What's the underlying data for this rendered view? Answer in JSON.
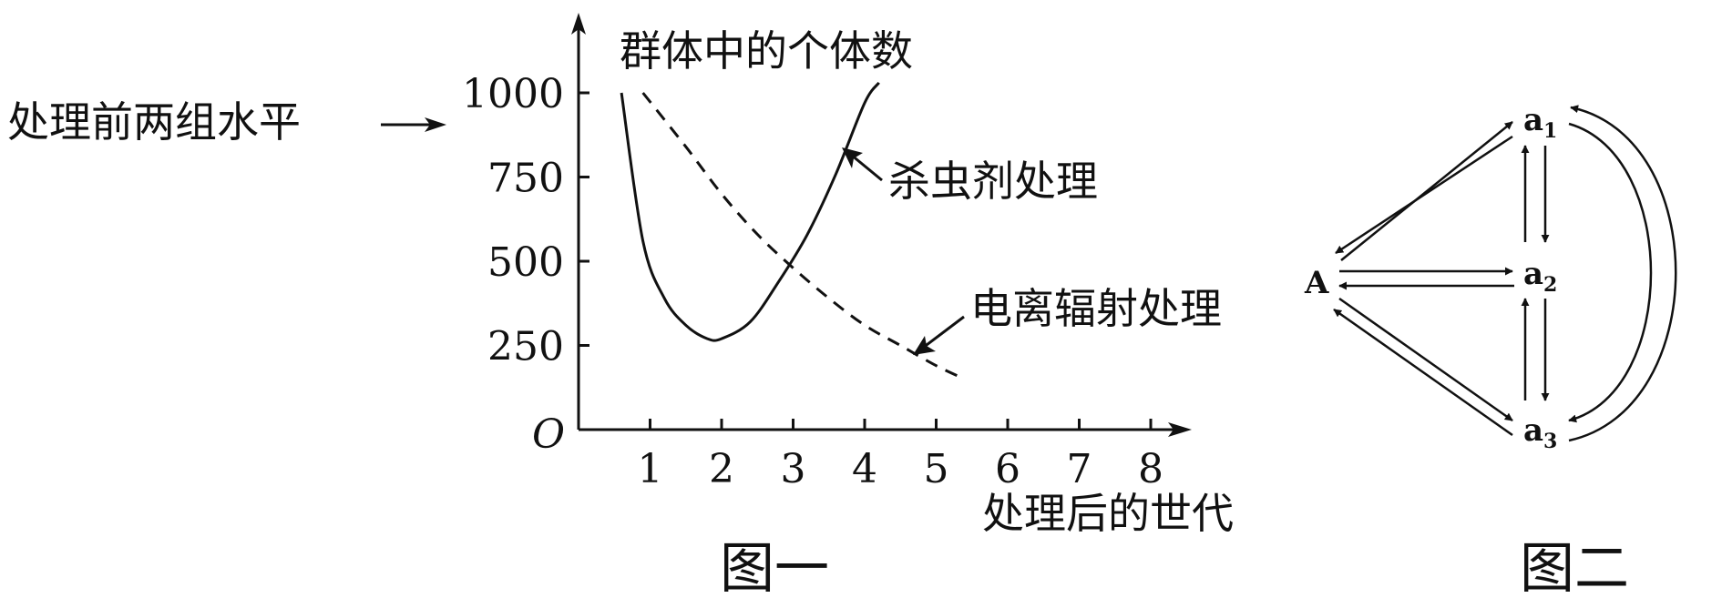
{
  "chart_data": {
    "type": "line",
    "ylabel": "群体中的个体数",
    "xlabel": "处理后的世代",
    "origin_label": "O",
    "caption": "图一",
    "x_ticks": [
      "1",
      "2",
      "3",
      "4",
      "5",
      "6",
      "7",
      "8"
    ],
    "y_ticks": [
      "250",
      "500",
      "750",
      "1000"
    ],
    "xlim": [
      0,
      8.6
    ],
    "ylim": [
      0,
      1000
    ],
    "pointer_label": "处理前两组水平",
    "series": [
      {
        "name": "杀虫剂处理",
        "style": "solid",
        "x": [
          0.6,
          0.9,
          1.2,
          1.5,
          1.8,
          2.0,
          2.4,
          2.8,
          3.2,
          3.6,
          4.0,
          4.2
        ],
        "y": [
          1000,
          560,
          390,
          310,
          270,
          270,
          320,
          440,
          580,
          760,
          970,
          1030
        ]
      },
      {
        "name": "电离辐射处理",
        "style": "dashed",
        "x": [
          0.9,
          1.5,
          2.0,
          2.5,
          3.0,
          3.5,
          4.0,
          4.5,
          5.0,
          5.4
        ],
        "y": [
          1000,
          840,
          700,
          580,
          480,
          390,
          310,
          250,
          190,
          150
        ]
      }
    ]
  },
  "diagram": {
    "caption": "图二",
    "nodes": [
      {
        "id": "A",
        "base": "A",
        "sub": ""
      },
      {
        "id": "a1",
        "base": "a",
        "sub": "1"
      },
      {
        "id": "a2",
        "base": "a",
        "sub": "2"
      },
      {
        "id": "a3",
        "base": "a",
        "sub": "3"
      }
    ]
  }
}
